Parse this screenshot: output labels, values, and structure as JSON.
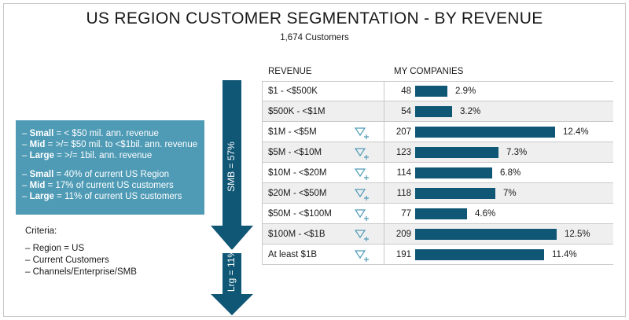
{
  "title": "US REGION CUSTOMER SEGMENTATION - BY REVENUE",
  "subtitle": "1,674 Customers",
  "infobox": {
    "lines": [
      {
        "dash": "– ",
        "bold": "Small",
        "text": " = < $50 mil. ann. revenue"
      },
      {
        "dash": "– ",
        "bold": "Mid",
        "text": " = >/= $50 mil. to <$1bil. ann. revenue"
      },
      {
        "dash": "– ",
        "bold": "Large",
        "text": " = >/= 1bil. ann. revenue"
      }
    ],
    "lines2": [
      {
        "dash": "– ",
        "bold": "Small",
        "text": " = 40% of current US Region"
      },
      {
        "dash": "– ",
        "bold": "Mid",
        "text": " = 17% of current US customers"
      },
      {
        "dash": "– ",
        "bold": "Large",
        "text": " = 11% of current US customers"
      }
    ],
    "color": "#4f9bb6"
  },
  "criteria": {
    "heading": "Criteria:",
    "items": [
      "– Region = US",
      "– Current Customers",
      "– Channels/Enterprise/SMB"
    ]
  },
  "arrows": {
    "smb_label": "SMB = 57%",
    "lrg_label": "Lrg = 11%",
    "color": "#0f5775"
  },
  "chart_data": {
    "type": "bar",
    "orientation": "horizontal",
    "column_headers": {
      "category": "REVENUE",
      "value": "MY COMPANIES"
    },
    "categories": [
      "$1 - <$500K",
      "$500K - <$1M",
      "$1M - <$5M",
      "$5M - <$10M",
      "$10M - <$20M",
      "$20M - <$50M",
      "$50M - <$100M",
      "$100M - <$1B",
      "At least $1B"
    ],
    "values": [
      48,
      54,
      207,
      123,
      114,
      118,
      77,
      209,
      191
    ],
    "percent_labels": [
      "2.9%",
      "3.2%",
      "12.4%",
      "7.3%",
      "6.8%",
      "7%",
      "4.6%",
      "12.5%",
      "11.4%"
    ],
    "filter_icon": [
      false,
      false,
      true,
      true,
      true,
      true,
      true,
      true,
      true
    ],
    "bar_color": "#0f5775",
    "filter_icon_color": "#4f9bb6"
  }
}
